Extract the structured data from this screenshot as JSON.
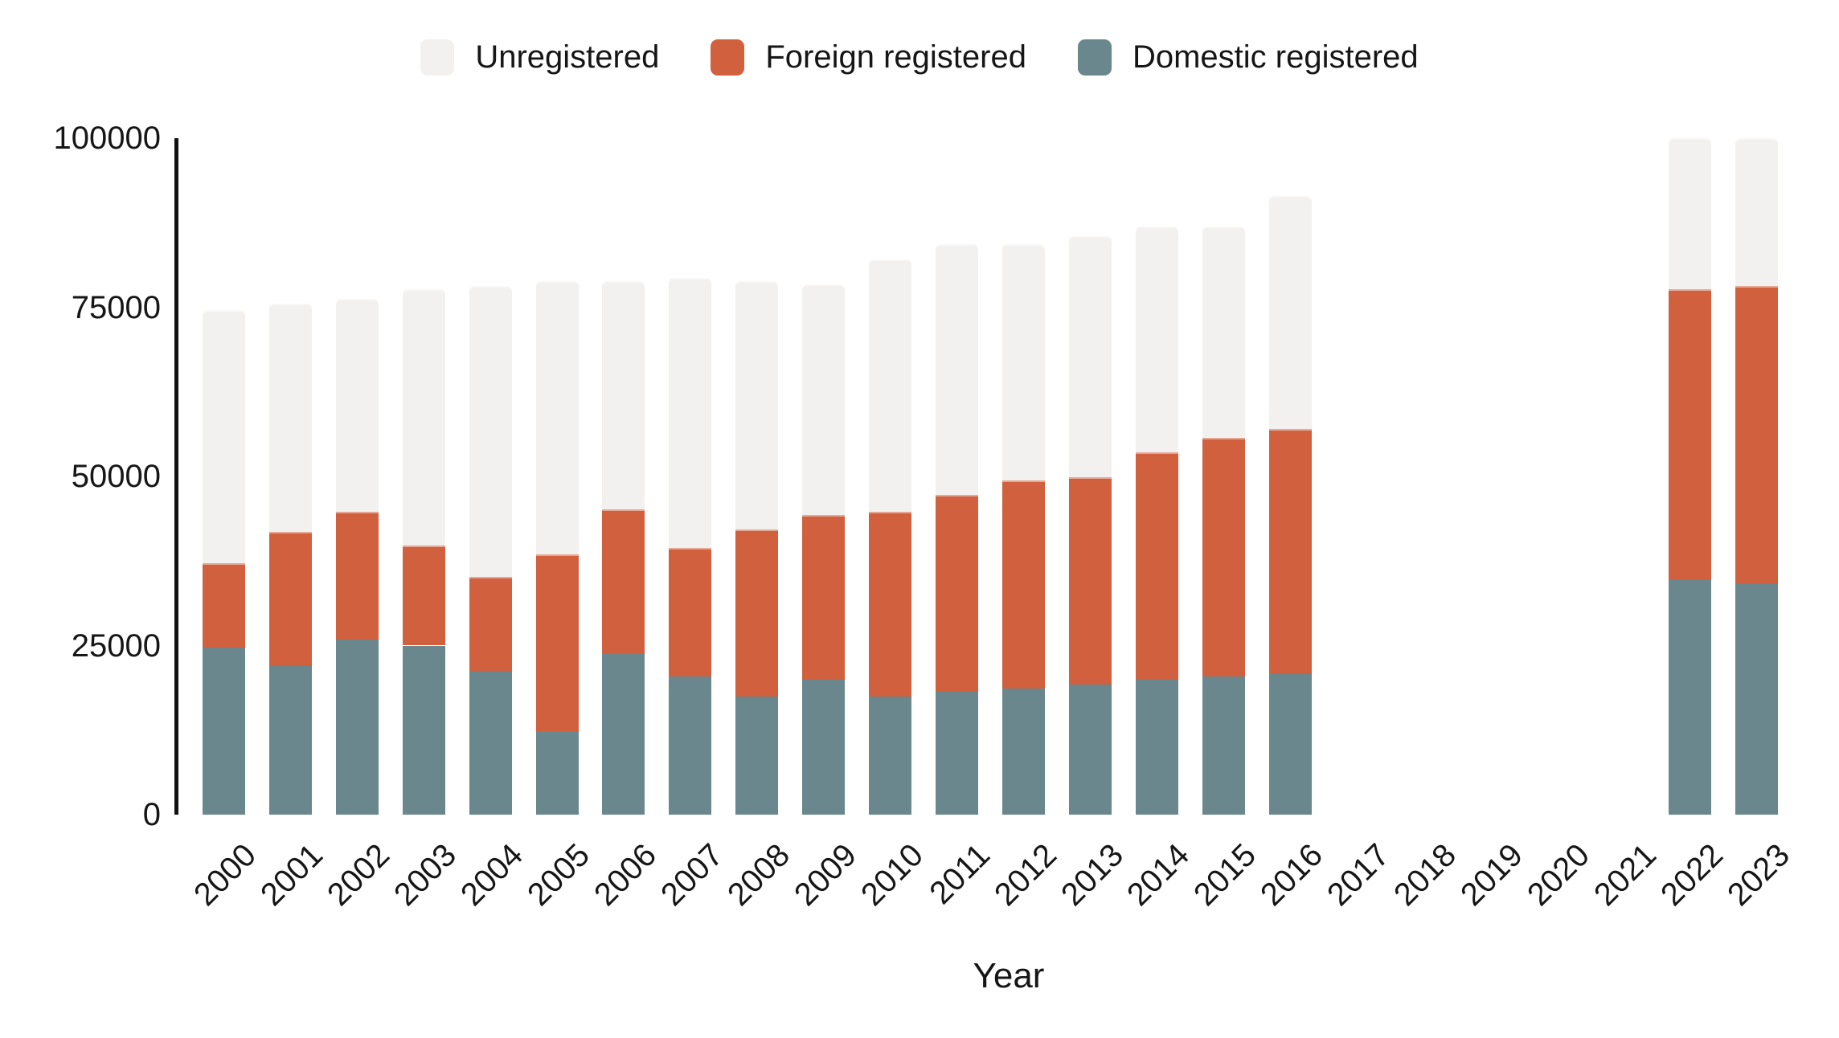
{
  "chart_data": {
    "type": "bar",
    "stacked": true,
    "title": "",
    "xlabel": "Year",
    "ylabel": "",
    "ylim": [
      0,
      100000
    ],
    "yticks": [
      0,
      25000,
      50000,
      75000,
      100000
    ],
    "grid": false,
    "legend_position": "top",
    "categories": [
      "2000",
      "2001",
      "2002",
      "2003",
      "2004",
      "2005",
      "2006",
      "2007",
      "2008",
      "2009",
      "2010",
      "2011",
      "2012",
      "2013",
      "2014",
      "2015",
      "2016",
      "2017",
      "2018",
      "2019",
      "2020",
      "2021",
      "2022",
      "2023"
    ],
    "legend": [
      {
        "name": "Unregistered",
        "color": "#F2F1EF"
      },
      {
        "name": "Foreign registered",
        "color": "#D1603F"
      },
      {
        "name": "Domestic registered",
        "color": "#69878C"
      }
    ],
    "series": [
      {
        "name": "Domestic registered",
        "color": "#69878C",
        "values": [
          24700,
          22000,
          25900,
          25000,
          21300,
          12400,
          23700,
          20400,
          17400,
          20000,
          17400,
          18200,
          18700,
          19200,
          20100,
          20400,
          20900,
          null,
          null,
          null,
          null,
          null,
          34700,
          34200
        ]
      },
      {
        "name": "Foreign registered",
        "color": "#D1603F",
        "values": [
          12500,
          19800,
          18900,
          14800,
          13900,
          26100,
          21400,
          19000,
          24800,
          24300,
          27400,
          29100,
          30700,
          30700,
          33500,
          35300,
          36100,
          null,
          null,
          null,
          null,
          null,
          43000,
          43900
        ]
      },
      {
        "name": "Unregistered",
        "color": "#F2F1EF",
        "values": [
          37400,
          33700,
          31500,
          37900,
          42900,
          40400,
          33800,
          39900,
          36700,
          34100,
          37300,
          37000,
          34900,
          35600,
          33300,
          31200,
          34400,
          null,
          null,
          null,
          null,
          null,
          22300,
          21900
        ]
      }
    ]
  }
}
